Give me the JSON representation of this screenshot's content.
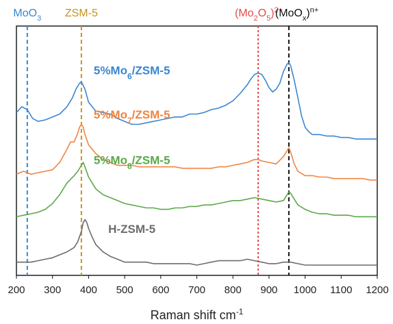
{
  "chart_data": {
    "type": "line",
    "xlabel": "Raman shift cm",
    "xlabel_sup": "-1",
    "ylabel": "",
    "xlim": [
      200,
      1200
    ],
    "x_ticks": [
      200,
      300,
      400,
      500,
      600,
      700,
      800,
      900,
      1000,
      1100,
      1200
    ],
    "y_ticks_shown": false,
    "grid": false,
    "stacked_offset": true,
    "reference_lines": [
      {
        "x": 230,
        "color": "#3a86d0",
        "label_parts": [
          {
            "t": "MoO"
          },
          {
            "t": "3",
            "sub": true
          }
        ]
      },
      {
        "x": 380,
        "color": "#c8921e",
        "label_parts": [
          {
            "t": "ZSM-5"
          }
        ]
      },
      {
        "x": 870,
        "color": "#e24a4a",
        "label_parts": [
          {
            "t": "(Mo"
          },
          {
            "t": "2",
            "sub": true
          },
          {
            "t": "O"
          },
          {
            "t": "5",
            "sub": true
          },
          {
            "t": ")"
          },
          {
            "t": "2+",
            "sup": true
          }
        ]
      },
      {
        "x": 955,
        "color": "#111111",
        "label_parts": [
          {
            "t": "(MoO"
          },
          {
            "t": "x",
            "sub": true
          },
          {
            "t": ")"
          },
          {
            "t": "n+",
            "sup": true
          }
        ]
      }
    ],
    "series": [
      {
        "name_parts": [
          {
            "t": "5%Mo"
          },
          {
            "t": "6",
            "sub": true
          },
          {
            "t": "/ZSM-5"
          }
        ],
        "color": "#3a86d0",
        "label_at": {
          "x": 520,
          "y": 9.2
        },
        "x": [
          200,
          215,
          230,
          245,
          260,
          280,
          300,
          320,
          340,
          355,
          365,
          375,
          380,
          390,
          400,
          420,
          440,
          460,
          480,
          500,
          520,
          540,
          560,
          580,
          600,
          620,
          640,
          660,
          680,
          700,
          720,
          740,
          760,
          780,
          800,
          820,
          840,
          850,
          860,
          870,
          880,
          890,
          900,
          910,
          920,
          930,
          940,
          950,
          955,
          960,
          970,
          980,
          990,
          1000,
          1010,
          1020,
          1040,
          1060,
          1080,
          1100,
          1120,
          1140,
          1160,
          1180,
          1200
        ],
        "y": [
          6.6,
          7.0,
          6.8,
          6.2,
          6.0,
          6.1,
          6.3,
          6.5,
          7.0,
          7.6,
          8.2,
          8.6,
          8.7,
          8.2,
          7.3,
          6.7,
          6.6,
          6.5,
          6.2,
          6.0,
          5.8,
          5.8,
          5.9,
          6.0,
          6.1,
          6.2,
          6.3,
          6.3,
          6.5,
          6.5,
          6.6,
          6.8,
          6.9,
          7.1,
          7.4,
          7.9,
          8.5,
          8.9,
          9.2,
          9.3,
          9.2,
          8.8,
          8.3,
          8.0,
          8.2,
          8.6,
          9.4,
          9.9,
          10.0,
          9.8,
          8.8,
          7.6,
          6.4,
          5.6,
          5.3,
          5.1,
          5.1,
          5.0,
          5.0,
          4.9,
          4.9,
          4.8,
          4.8,
          4.8,
          4.8
        ]
      },
      {
        "name_parts": [
          {
            "t": "5%Mo"
          },
          {
            "t": "7",
            "sub": true
          },
          {
            "t": "/ZSM-5"
          }
        ],
        "color": "#f08440",
        "label_at": {
          "x": 520,
          "y": 6.2
        },
        "x": [
          200,
          220,
          240,
          260,
          280,
          300,
          320,
          340,
          350,
          360,
          370,
          375,
          380,
          385,
          390,
          400,
          420,
          440,
          460,
          480,
          500,
          520,
          540,
          560,
          580,
          600,
          620,
          640,
          660,
          680,
          700,
          720,
          740,
          760,
          780,
          800,
          820,
          840,
          860,
          870,
          880,
          900,
          920,
          940,
          950,
          955,
          960,
          970,
          980,
          1000,
          1020,
          1040,
          1060,
          1080,
          1100,
          1120,
          1140,
          1160,
          1180,
          1200
        ],
        "y": [
          2.4,
          2.6,
          2.4,
          2.5,
          2.6,
          2.7,
          3.2,
          4.1,
          4.6,
          4.6,
          5.2,
          5.6,
          5.8,
          5.6,
          5.1,
          4.4,
          3.8,
          3.4,
          3.2,
          3.0,
          3.0,
          3.0,
          2.9,
          2.9,
          2.9,
          2.9,
          2.9,
          2.9,
          2.8,
          2.8,
          2.8,
          2.8,
          2.8,
          2.9,
          2.9,
          3.0,
          3.1,
          3.2,
          3.4,
          3.4,
          3.3,
          3.2,
          3.1,
          3.6,
          4.0,
          4.2,
          3.9,
          3.1,
          2.6,
          2.3,
          2.3,
          2.2,
          2.2,
          2.1,
          2.1,
          2.1,
          2.1,
          2.1,
          2.0,
          2.0
        ]
      },
      {
        "name_parts": [
          {
            "t": "5%Mo"
          },
          {
            "t": "8",
            "sub": true
          },
          {
            "t": "/ZSM-5"
          }
        ],
        "color": "#5aa84a",
        "label_at": {
          "x": 520,
          "y": 3.1
        },
        "x": [
          200,
          220,
          240,
          260,
          280,
          300,
          320,
          340,
          360,
          370,
          380,
          385,
          390,
          400,
          420,
          440,
          460,
          480,
          500,
          520,
          540,
          560,
          580,
          600,
          620,
          640,
          660,
          680,
          700,
          720,
          740,
          760,
          780,
          800,
          820,
          840,
          860,
          880,
          900,
          920,
          940,
          950,
          955,
          960,
          970,
          980,
          1000,
          1020,
          1040,
          1060,
          1080,
          1100,
          1120,
          1140,
          1160,
          1180,
          1200
        ],
        "y": [
          -0.5,
          -0.4,
          -0.3,
          -0.2,
          0.0,
          0.4,
          1.0,
          1.8,
          2.3,
          2.6,
          3.0,
          3.2,
          2.9,
          2.2,
          1.4,
          1.0,
          0.8,
          0.6,
          0.4,
          0.3,
          0.2,
          0.1,
          0.1,
          0.0,
          0.0,
          0.1,
          0.1,
          0.2,
          0.2,
          0.3,
          0.3,
          0.4,
          0.5,
          0.6,
          0.6,
          0.7,
          0.8,
          0.7,
          0.6,
          0.5,
          0.6,
          1.0,
          1.2,
          1.1,
          0.7,
          0.3,
          0.0,
          -0.2,
          -0.3,
          -0.3,
          -0.4,
          -0.4,
          -0.4,
          -0.5,
          -0.5,
          -0.5,
          -0.5
        ]
      },
      {
        "name_parts": [
          {
            "t": "H-ZSM-5"
          }
        ],
        "color": "#6b6b6b",
        "label_at": {
          "x": 520,
          "y": -1.6
        },
        "x": [
          200,
          220,
          240,
          260,
          280,
          300,
          320,
          340,
          360,
          370,
          380,
          385,
          390,
          395,
          400,
          410,
          420,
          440,
          460,
          480,
          500,
          520,
          540,
          560,
          580,
          600,
          620,
          640,
          660,
          680,
          700,
          720,
          740,
          760,
          780,
          800,
          820,
          840,
          860,
          880,
          900,
          920,
          940,
          960,
          980,
          1000,
          1020,
          1040,
          1060,
          1080,
          1100,
          1120,
          1140,
          1160,
          1180,
          1200
        ],
        "y": [
          -3.6,
          -3.6,
          -3.6,
          -3.5,
          -3.4,
          -3.3,
          -3.1,
          -2.9,
          -2.6,
          -2.2,
          -1.5,
          -0.9,
          -0.7,
          -0.9,
          -1.3,
          -1.9,
          -2.4,
          -2.9,
          -3.2,
          -3.4,
          -3.6,
          -3.6,
          -3.6,
          -3.6,
          -3.7,
          -3.7,
          -3.7,
          -3.7,
          -3.7,
          -3.7,
          -3.8,
          -3.7,
          -3.6,
          -3.5,
          -3.5,
          -3.5,
          -3.5,
          -3.4,
          -3.5,
          -3.6,
          -3.7,
          -3.7,
          -3.6,
          -3.6,
          -3.7,
          -3.8,
          -3.8,
          -3.8,
          -3.8,
          -3.8,
          -3.8,
          -3.8,
          -3.8,
          -3.8,
          -3.8,
          -3.8
        ]
      }
    ],
    "ylim": [
      -4.5,
      12.5
    ]
  }
}
